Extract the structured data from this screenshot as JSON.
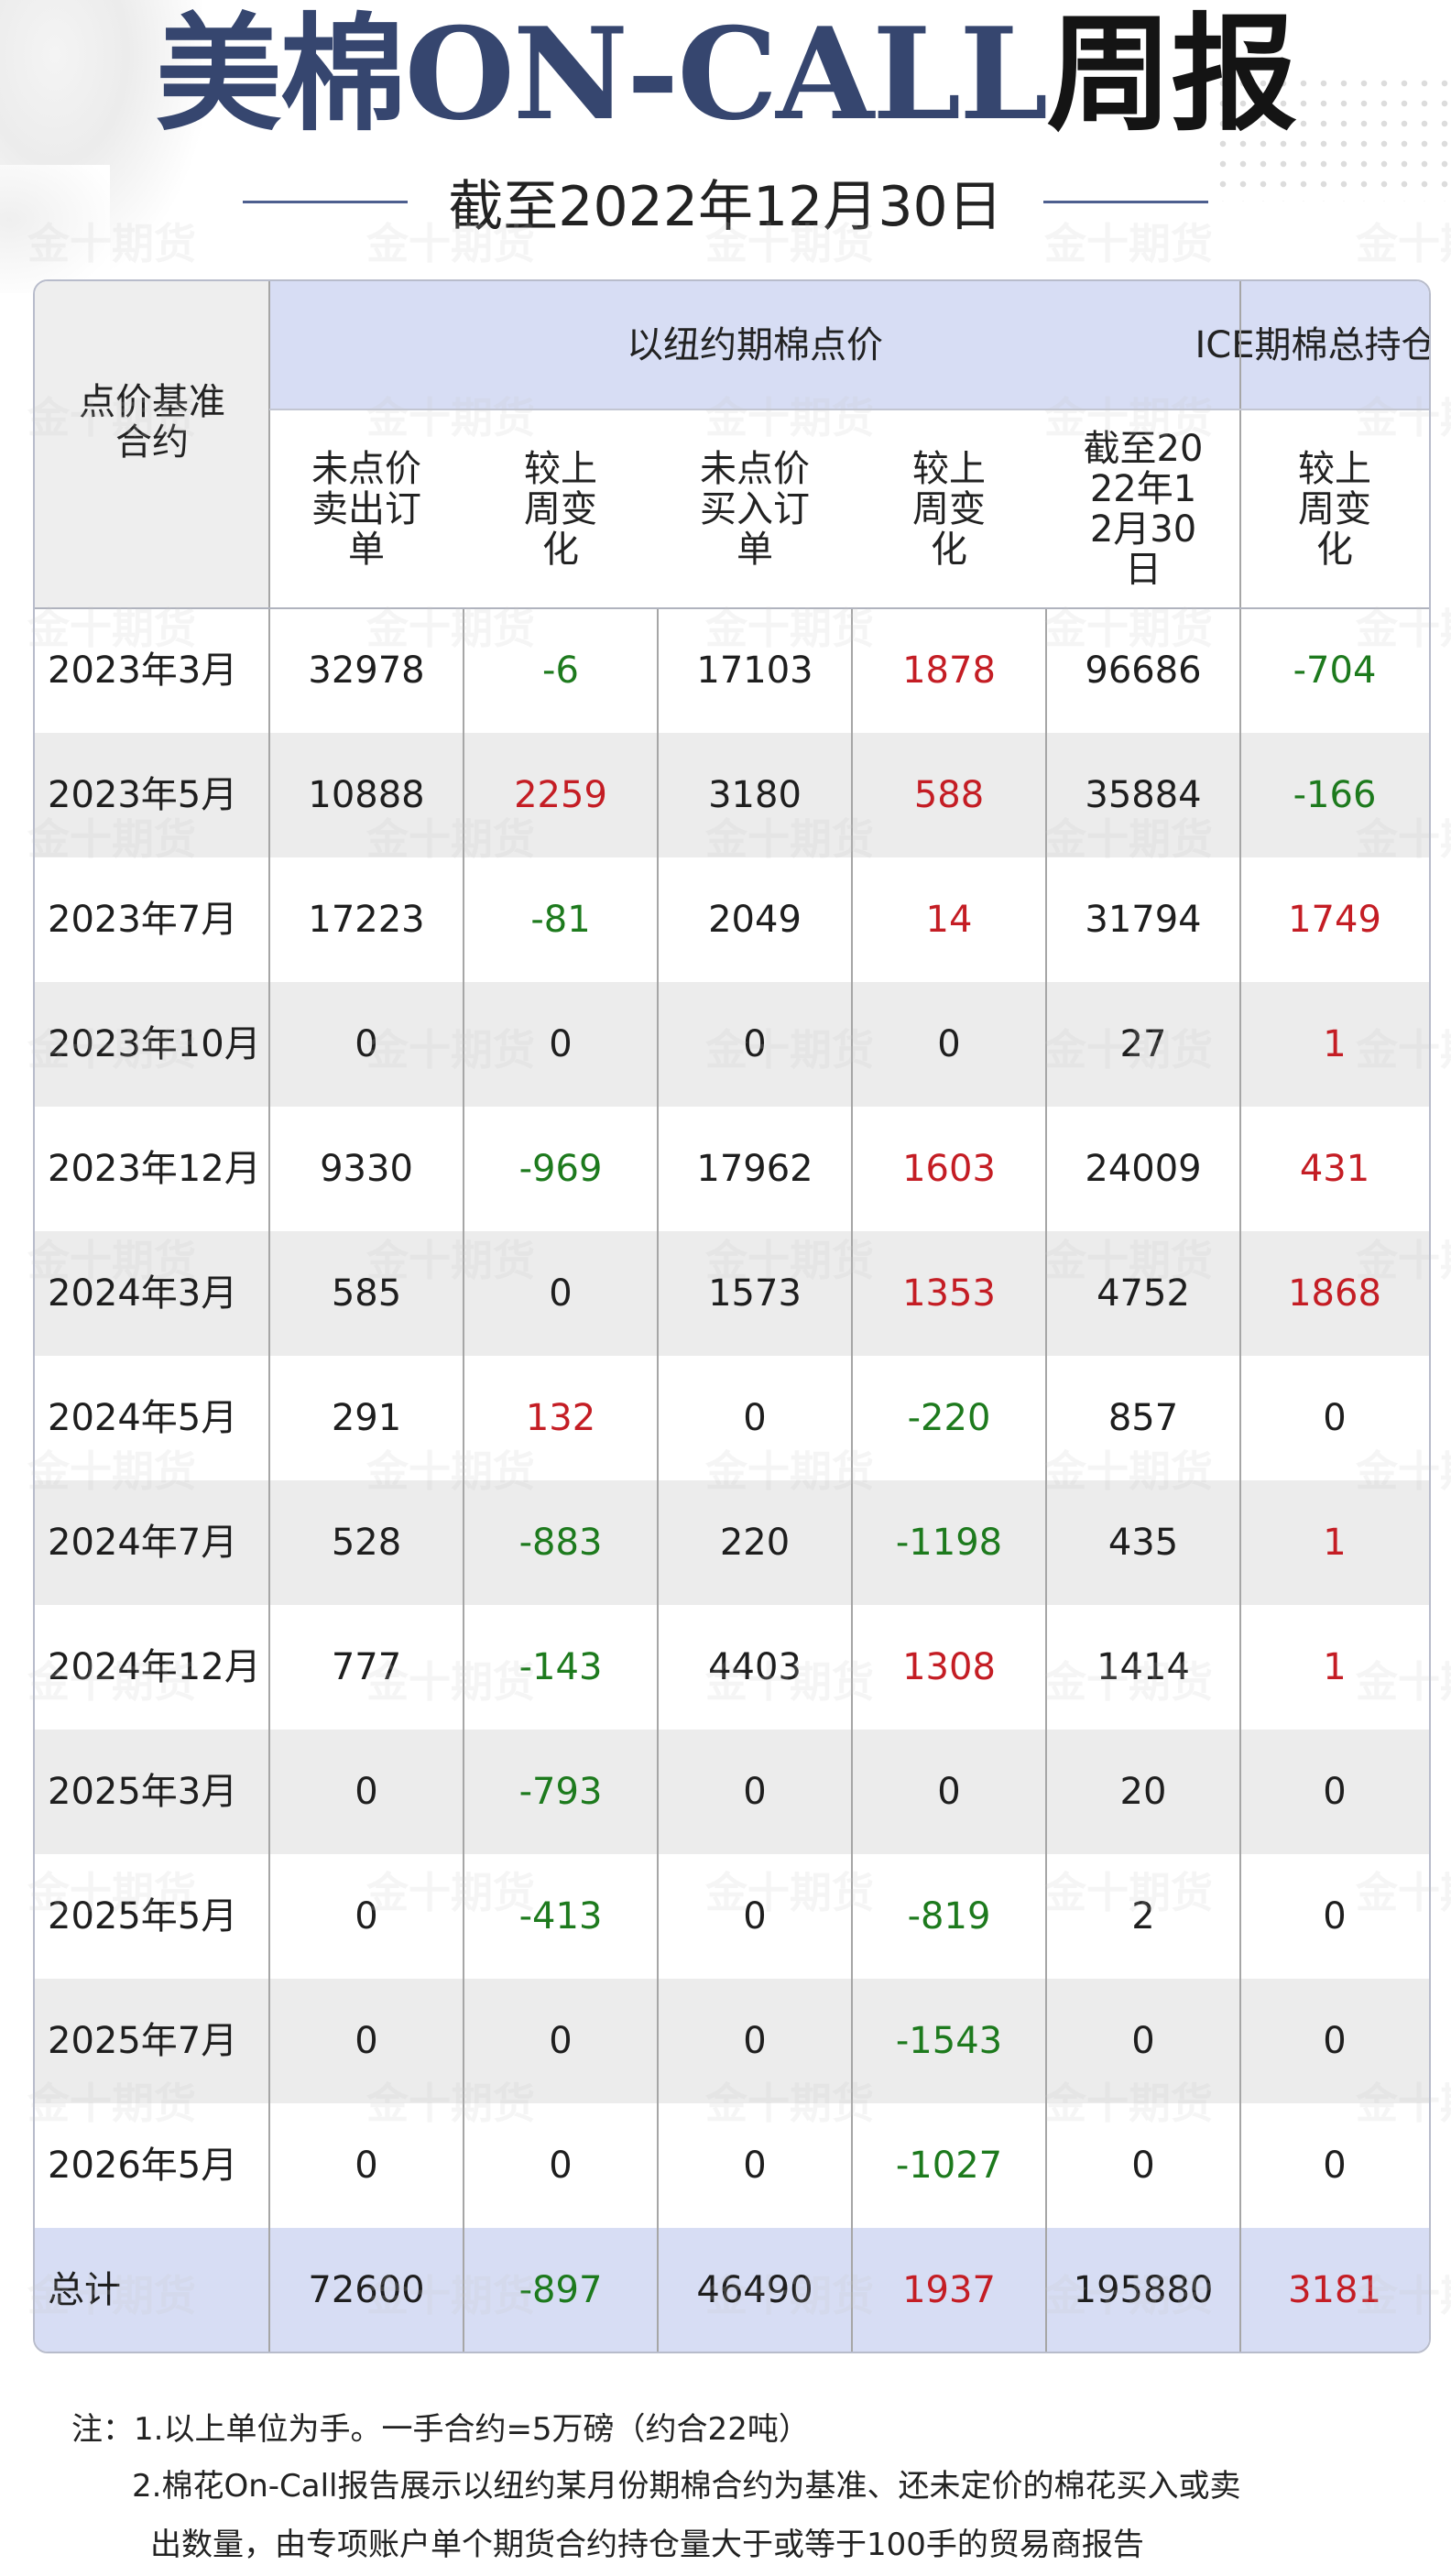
{
  "title_part1": "美棉ON-CALL",
  "title_part2": "周报",
  "subtitle": "截至2022年12月30日",
  "watermark": "金十期货",
  "table": {
    "header": {
      "base_contract": "点价基准合约",
      "group_ny": "以纽约期棉点价",
      "group_ice": "ICE期棉总持仓量",
      "unpriced_sell": "未点价卖出订单",
      "wow_change_1": "较上周变化",
      "unpriced_buy": "未点价买入订单",
      "wow_change_2": "较上周变化",
      "as_of": "截至2022年12月30日",
      "wow_change_3": "较上周变化"
    },
    "rows": [
      {
        "contract": "2023年3月",
        "sell": "32978",
        "sell_chg": "-6",
        "buy": "17103",
        "buy_chg": "1878",
        "oi": "96686",
        "oi_chg": "-704"
      },
      {
        "contract": "2023年5月",
        "sell": "10888",
        "sell_chg": "2259",
        "buy": "3180",
        "buy_chg": "588",
        "oi": "35884",
        "oi_chg": "-166"
      },
      {
        "contract": "2023年7月",
        "sell": "17223",
        "sell_chg": "-81",
        "buy": "2049",
        "buy_chg": "14",
        "oi": "31794",
        "oi_chg": "1749"
      },
      {
        "contract": "2023年10月",
        "sell": "0",
        "sell_chg": "0",
        "buy": "0",
        "buy_chg": "0",
        "oi": "27",
        "oi_chg": "1"
      },
      {
        "contract": "2023年12月",
        "sell": "9330",
        "sell_chg": "-969",
        "buy": "17962",
        "buy_chg": "1603",
        "oi": "24009",
        "oi_chg": "431"
      },
      {
        "contract": "2024年3月",
        "sell": "585",
        "sell_chg": "0",
        "buy": "1573",
        "buy_chg": "1353",
        "oi": "4752",
        "oi_chg": "1868"
      },
      {
        "contract": "2024年5月",
        "sell": "291",
        "sell_chg": "132",
        "buy": "0",
        "buy_chg": "-220",
        "oi": "857",
        "oi_chg": "0"
      },
      {
        "contract": "2024年7月",
        "sell": "528",
        "sell_chg": "-883",
        "buy": "220",
        "buy_chg": "-1198",
        "oi": "435",
        "oi_chg": "1"
      },
      {
        "contract": "2024年12月",
        "sell": "777",
        "sell_chg": "-143",
        "buy": "4403",
        "buy_chg": "1308",
        "oi": "1414",
        "oi_chg": "1"
      },
      {
        "contract": "2025年3月",
        "sell": "0",
        "sell_chg": "-793",
        "buy": "0",
        "buy_chg": "0",
        "oi": "20",
        "oi_chg": "0"
      },
      {
        "contract": "2025年5月",
        "sell": "0",
        "sell_chg": "-413",
        "buy": "0",
        "buy_chg": "-819",
        "oi": "2",
        "oi_chg": "0"
      },
      {
        "contract": "2025年7月",
        "sell": "0",
        "sell_chg": "0",
        "buy": "0",
        "buy_chg": "-1543",
        "oi": "0",
        "oi_chg": "0"
      },
      {
        "contract": "2026年5月",
        "sell": "0",
        "sell_chg": "0",
        "buy": "0",
        "buy_chg": "-1027",
        "oi": "0",
        "oi_chg": "0"
      }
    ],
    "total": {
      "contract": "总计",
      "sell": "72600",
      "sell_chg": "-897",
      "buy": "46490",
      "buy_chg": "1937",
      "oi": "195880",
      "oi_chg": "3181"
    }
  },
  "notes": {
    "line1": "注：1.以上单位为手。一手合约=5万磅（约合22吨）",
    "line2": "2.棉花On-Call报告展示以纽约某月份期棉合约为基准、还未定价的棉花买入或卖",
    "line3": "出数量，由专项账户单个期货合约持仓量大于或等于100手的贸易商报告"
  },
  "colors": {
    "title_blue": "#36466f",
    "header_blue": "#d7ddf4",
    "positive_red": "#c41d24",
    "negative_green": "#1d7a1d"
  }
}
